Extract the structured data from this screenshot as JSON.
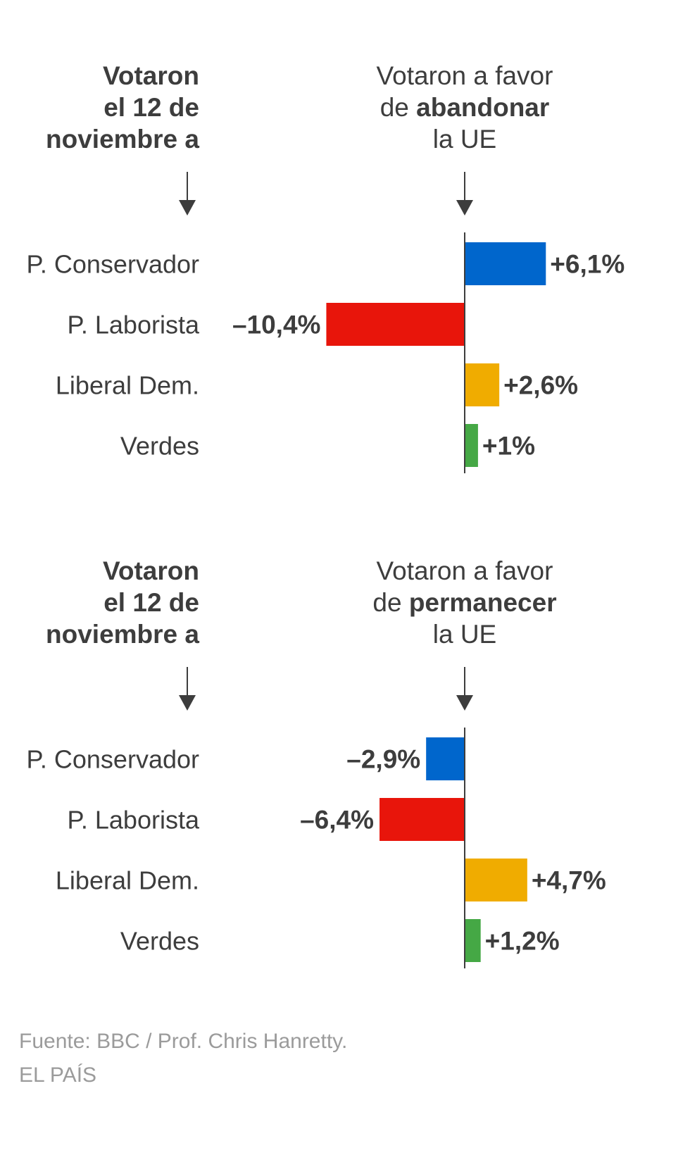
{
  "chart_data": [
    {
      "type": "bar",
      "orientation": "horizontal",
      "left_header": [
        "Votaron",
        "el 12 de",
        "noviembre a"
      ],
      "right_header": {
        "line1": "Votaron a favor",
        "line2_prefix": "de ",
        "line2_bold": "abandonar",
        "line3": "la UE"
      },
      "categories": [
        "P. Conservador",
        "P. Laborista",
        "Liberal Dem.",
        "Verdes"
      ],
      "values": [
        6.1,
        -10.4,
        2.6,
        1
      ],
      "labels": [
        "+6,1%",
        "–10,4%",
        "+2,6%",
        "+1%"
      ],
      "unit": "%"
    },
    {
      "type": "bar",
      "orientation": "horizontal",
      "left_header": [
        "Votaron",
        "el 12 de",
        "noviembre a"
      ],
      "right_header": {
        "line1": "Votaron a favor",
        "line2_prefix": "de ",
        "line2_bold": "permanecer",
        "line3": "la UE"
      },
      "categories": [
        "P. Conservador",
        "P. Laborista",
        "Liberal Dem.",
        "Verdes"
      ],
      "values": [
        -2.9,
        -6.4,
        4.7,
        1.2
      ],
      "labels": [
        "–2,9%",
        "–6,4%",
        "+4,7%",
        "+1,2%"
      ],
      "unit": "%"
    }
  ],
  "colors": {
    "P. Conservador": "#0066cc",
    "P. Laborista": "#e8150b",
    "Liberal Dem.": "#f0ac00",
    "Verdes": "#45a845",
    "text": "#3d3d3d",
    "source": "#9b9b9b"
  },
  "footer": {
    "source": "Fuente: BBC / Prof. Chris Hanretty.",
    "credit": "EL PAÍS"
  }
}
